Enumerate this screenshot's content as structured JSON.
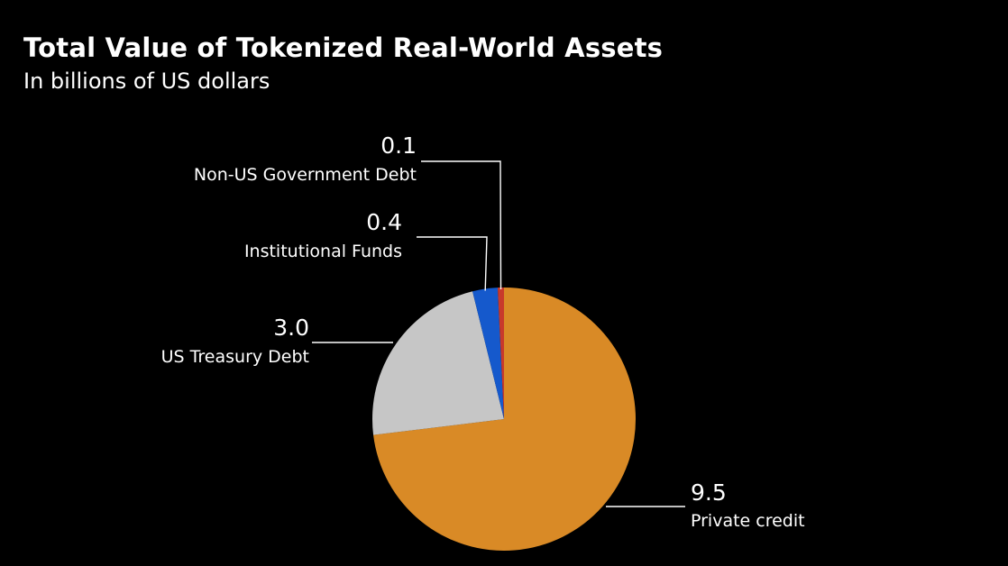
{
  "header": {
    "title": "Total Value of Tokenized Real-World Assets",
    "subtitle": "In billions of US dollars"
  },
  "chart_data": {
    "type": "pie",
    "title": "Total Value of Tokenized Real-World Assets",
    "subtitle": "In billions of US dollars",
    "start": "12 o'clock",
    "direction": "clockwise",
    "legend": "none",
    "slices": [
      {
        "label": "Private credit",
        "value": 9.5,
        "value_label": "9.5",
        "color": "#d98a26"
      },
      {
        "label": "US Treasury Debt",
        "value": 3.0,
        "value_label": "3.0",
        "color": "#c6c6c6"
      },
      {
        "label": "Institutional Funds",
        "value": 0.4,
        "value_label": "0.4",
        "color": "#1559cc"
      },
      {
        "label": "Non-US Government Debt",
        "value": 0.1,
        "value_label": "0.1",
        "color": "#c8392b"
      }
    ]
  }
}
